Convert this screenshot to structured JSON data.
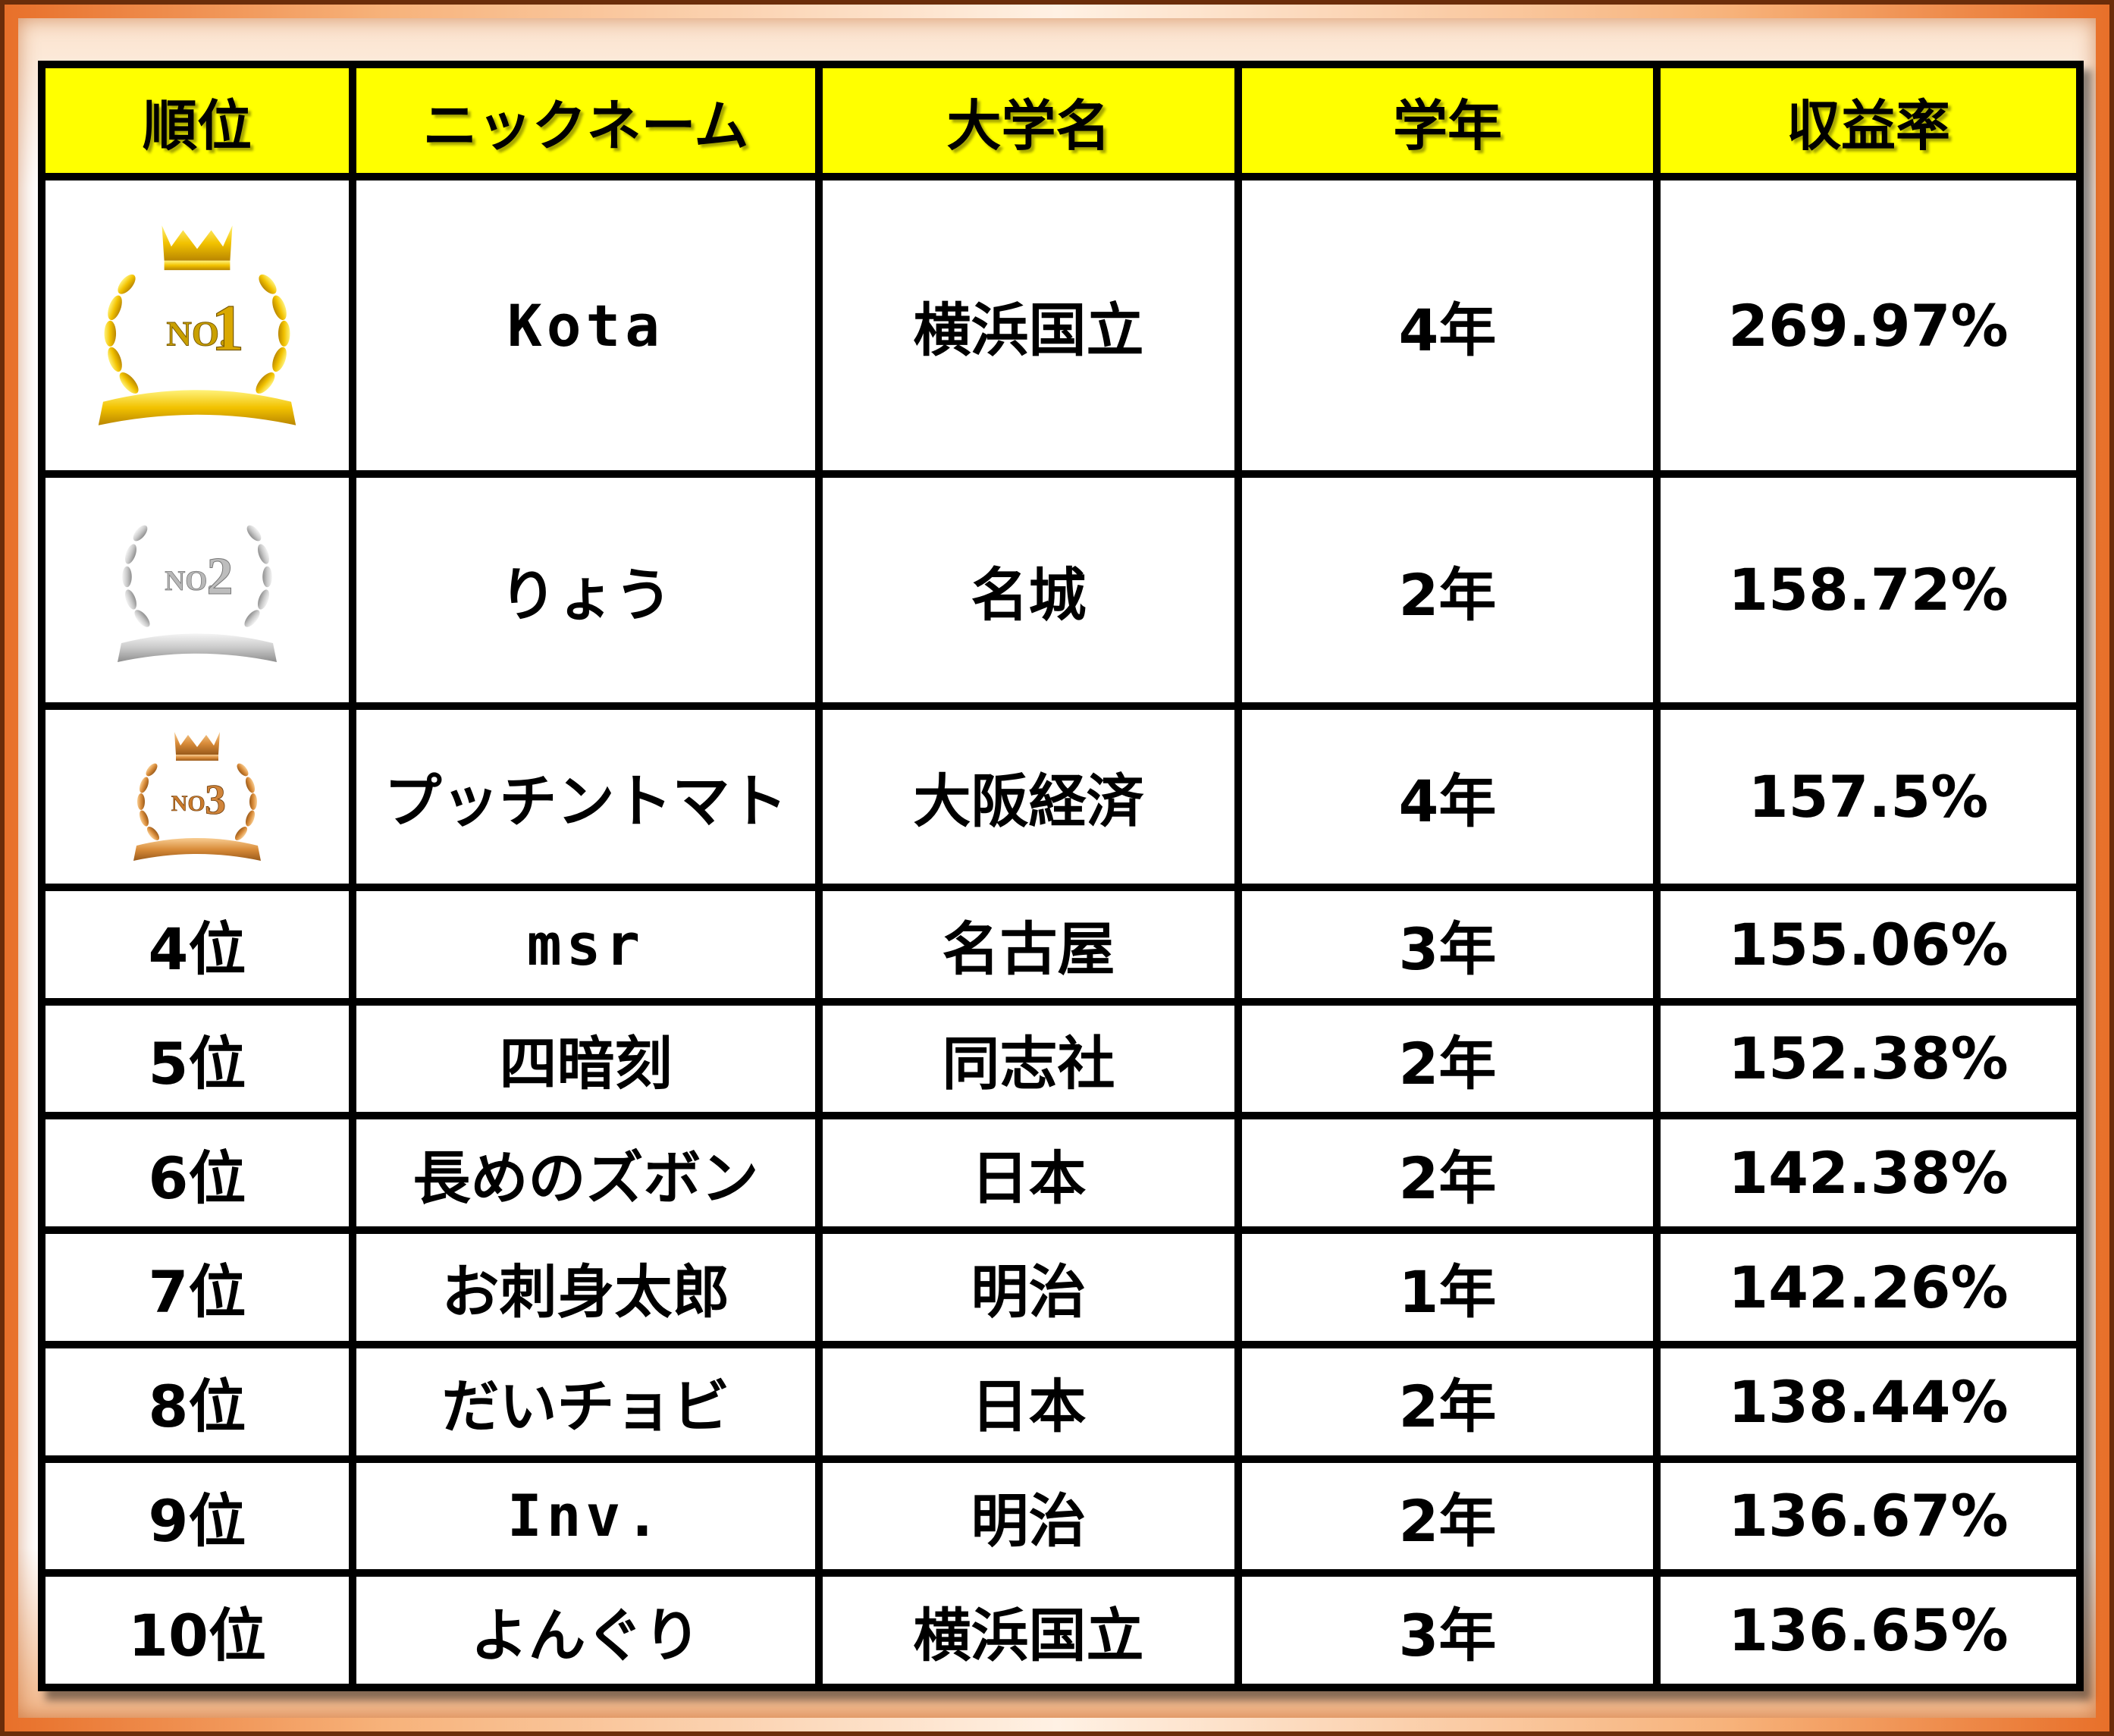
{
  "headers": [
    "順位",
    "ニックネーム",
    "大学名",
    "学年",
    "収益率"
  ],
  "rows": [
    {
      "rank": "",
      "medal": "gold-medal-icon",
      "nickname": "Kota",
      "university": "横浜国立",
      "year": "4年",
      "return": "269.97%"
    },
    {
      "rank": "",
      "medal": "silver-medal-icon",
      "nickname": "りょう",
      "university": "名城",
      "year": "2年",
      "return": "158.72%"
    },
    {
      "rank": "",
      "medal": "bronze-medal-icon",
      "nickname": "プッチントマト",
      "university": "大阪経済",
      "year": "4年",
      "return": "157.5%"
    },
    {
      "rank": "4位",
      "nickname": "msr",
      "university": "名古屋",
      "year": "3年",
      "return": "155.06%"
    },
    {
      "rank": "5位",
      "nickname": "四暗刻",
      "university": "同志社",
      "year": "2年",
      "return": "152.38%"
    },
    {
      "rank": "6位",
      "nickname": "長めのズボン",
      "university": "日本",
      "year": "2年",
      "return": "142.38%"
    },
    {
      "rank": "7位",
      "nickname": "お刺身太郎",
      "university": "明治",
      "year": "1年",
      "return": "142.26%"
    },
    {
      "rank": "8位",
      "nickname": "だいチョビ",
      "university": "日本",
      "year": "2年",
      "return": "138.44%"
    },
    {
      "rank": "9位",
      "nickname": "Inv.",
      "university": "明治",
      "year": "2年",
      "return": "136.67%"
    },
    {
      "rank": "10位",
      "nickname": "よんぐり",
      "university": "横浜国立",
      "year": "3年",
      "return": "136.65%"
    }
  ],
  "medals": {
    "gold": {
      "label_no": "NO.",
      "label_num": "1",
      "main": "#f2c200",
      "light": "#fff27a",
      "dark": "#b98600"
    },
    "silver": {
      "label_no": "NO.",
      "label_num": "2",
      "main": "#c9c9c9",
      "light": "#f4f4f4",
      "dark": "#8e8e8e"
    },
    "bronze": {
      "label_no": "NO.",
      "label_num": "3",
      "main": "#d98c3a",
      "light": "#f8cd92",
      "dark": "#9a5a1a"
    }
  }
}
